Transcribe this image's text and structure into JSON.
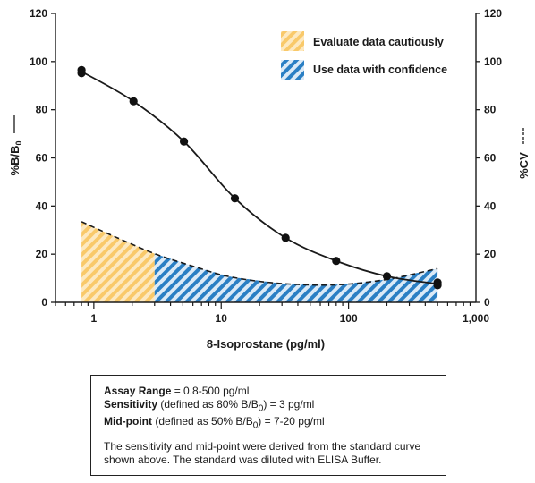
{
  "chart_data": {
    "type": "line",
    "xlabel": "8-Isoprostane (pg/ml)",
    "ylabel_left": "%B/B0",
    "ylabel_right": "%CV",
    "x_scale": "log",
    "xlim": [
      0.5,
      1000
    ],
    "ylim": [
      0,
      120
    ],
    "x_ticks": [
      "1",
      "10",
      "100",
      "1,000"
    ],
    "y_ticks": [
      "0",
      "20",
      "40",
      "60",
      "80",
      "100",
      "120"
    ],
    "grid": false,
    "legend_placement": "top-right",
    "series": [
      {
        "axis": "left",
        "style": "solid line with points",
        "x": [
          0.8,
          0.8,
          2.05,
          5.1,
          12.8,
          32,
          80,
          200,
          500,
          500
        ],
        "y": [
          96.5,
          95.2,
          83.5,
          66.8,
          43.2,
          26.8,
          17.2,
          10.8,
          8.2,
          7.1
        ]
      },
      {
        "axis": "right",
        "style": "dashed line",
        "x": [
          0.8,
          1.5,
          3,
          6,
          12,
          30,
          80,
          200,
          500
        ],
        "y": [
          33.5,
          27,
          20.2,
          15,
          10.5,
          7.8,
          7.3,
          9.5,
          14
        ]
      }
    ],
    "legend": [
      {
        "label": "Evaluate data cautiously",
        "color": "#f9c96a",
        "x_range": [
          0.8,
          3
        ]
      },
      {
        "label": "Use data with confidence",
        "color": "#2a7fc4",
        "x_range": [
          3,
          500
        ]
      }
    ]
  },
  "info": {
    "assay_range_label": "Assay Range",
    "assay_range_value": " = 0.8-500 pg/ml",
    "sensitivity_label": "Sensitivity",
    "sensitivity_value_pre": " (defined as 80% B/B",
    "sensitivity_sub": "0",
    "sensitivity_value_post": ") = 3 pg/ml",
    "midpoint_label": "Mid-point",
    "midpoint_value_pre": " (defined as 50% B/B",
    "midpoint_sub": "0",
    "midpoint_value_post": ") = 7-20 pg/ml",
    "note_line1": "The sensitivity and mid-point were derived from the standard curve",
    "note_line2": "shown above. The standard was diluted with ELISA Buffer."
  }
}
